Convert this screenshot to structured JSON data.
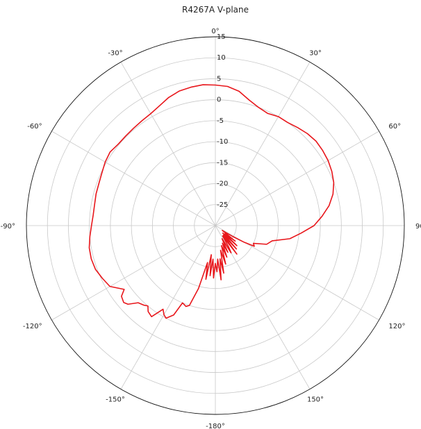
{
  "chart_data": {
    "type": "line",
    "projection": "polar",
    "title": "R4267A V-plane",
    "theta_zero": "top",
    "theta_direction": "clockwise",
    "angle_tick_labels": [
      "0°",
      "30°",
      "60°",
      "90",
      "120°",
      "150°",
      "-180°",
      "-150°",
      "-120°",
      "-90°",
      "-60°",
      "-30°"
    ],
    "angle_tick_values": [
      0,
      30,
      60,
      90,
      120,
      150,
      180,
      -150,
      -120,
      -90,
      -60,
      -30
    ],
    "radial_tick_labels": [
      "15",
      "10",
      "5",
      "0",
      "-5",
      "-10",
      "-15",
      "-20",
      "-25"
    ],
    "radial_tick_values": [
      15,
      10,
      5,
      0,
      -5,
      -10,
      -15,
      -20,
      -25
    ],
    "rlim": [
      -30,
      15
    ],
    "grid": true,
    "series": [
      {
        "color": "#e8161b",
        "theta": [
          0,
          5,
          10,
          15,
          20,
          25,
          30,
          35,
          40,
          45,
          50,
          55,
          60,
          65,
          70,
          75,
          80,
          85,
          90,
          95,
          100,
          105,
          110,
          115,
          118,
          120,
          122,
          125,
          128,
          130,
          133,
          135,
          138,
          140,
          143,
          145,
          148,
          150,
          153,
          155,
          158,
          160,
          163,
          165,
          168,
          170,
          172,
          174,
          176,
          178,
          180,
          182,
          184,
          186,
          188,
          190,
          192,
          195,
          198,
          200,
          203,
          205,
          208,
          210,
          212,
          215,
          218,
          220,
          222,
          225,
          228,
          230,
          233,
          235,
          240,
          245,
          250,
          255,
          260,
          265,
          270,
          275,
          280,
          285,
          290,
          295,
          300,
          305,
          310,
          315,
          320,
          325,
          330,
          335,
          340,
          345,
          350,
          355,
          360
        ],
        "r": [
          3.5,
          3.3,
          2.5,
          1.0,
          0.0,
          -0.5,
          0.0,
          0.0,
          0.5,
          1.0,
          1.3,
          1.2,
          1.0,
          0.6,
          0.0,
          -1.0,
          -2.5,
          -4.5,
          -6.5,
          -9.5,
          -12.0,
          -16.0,
          -17.0,
          -20.0,
          -19.5,
          -22.0,
          -25.0,
          -28.0,
          -24.0,
          -27.0,
          -23.0,
          -27.5,
          -22.5,
          -27.0,
          -21.5,
          -27.0,
          -24.0,
          -22.5,
          -26.5,
          -23.0,
          -25.5,
          -22.0,
          -25.0,
          -20.5,
          -24.0,
          -18.5,
          -22.0,
          -17.0,
          -22.0,
          -19.0,
          -21.0,
          -17.5,
          -22.0,
          -18.0,
          -23.0,
          -17.0,
          -21.0,
          -14.5,
          -10.0,
          -9.5,
          -10.0,
          -6.5,
          -5.0,
          -5.5,
          -6.5,
          -3.5,
          -4.0,
          -5.0,
          -4.5,
          -4.0,
          -2.0,
          -1.5,
          -2.0,
          -3.5,
          -1.0,
          -0.3,
          0.4,
          0.6,
          0.5,
          0.0,
          -0.5,
          -0.8,
          -0.8,
          -0.6,
          -0.5,
          -0.2,
          0.3,
          0.6,
          0.2,
          0.2,
          0.3,
          0.5,
          0.8,
          1.5,
          2.5,
          3.2,
          3.5,
          3.7,
          3.5
        ]
      }
    ]
  }
}
